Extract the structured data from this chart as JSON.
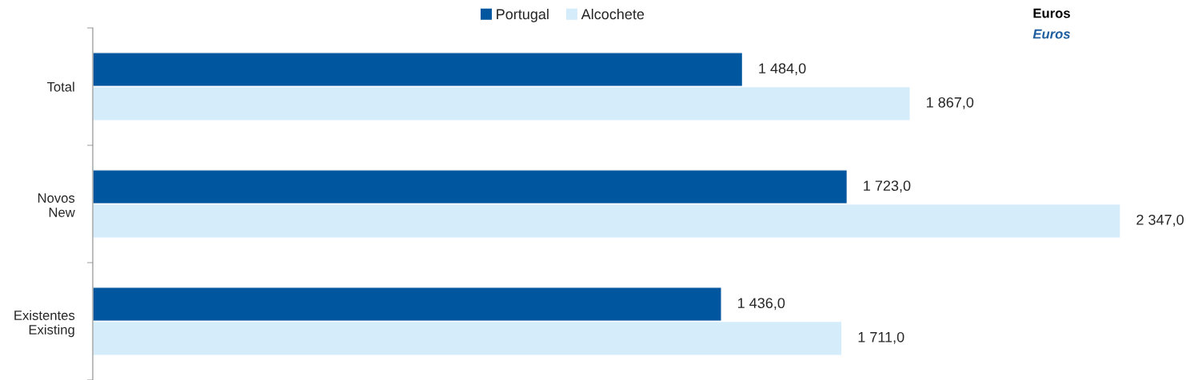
{
  "chart_data": {
    "type": "bar",
    "orientation": "horizontal",
    "categories": [
      "Total",
      "Novos\nNew",
      "Existentes\nExisting"
    ],
    "series": [
      {
        "name": "Portugal",
        "color": "#00579f",
        "values": [
          1484.0,
          1723.0,
          1436.0
        ],
        "value_labels": [
          "1 484,0",
          "1 723,0",
          "1 436,0"
        ]
      },
      {
        "name": "Alcochete",
        "color": "#d5ecfb",
        "values": [
          1867.0,
          2347.0,
          1711.0
        ],
        "value_labels": [
          "1 867,0",
          "2 347,0",
          "1 711,0"
        ]
      }
    ],
    "legend": "top",
    "annotations": [
      "Euros",
      "Euros"
    ]
  }
}
